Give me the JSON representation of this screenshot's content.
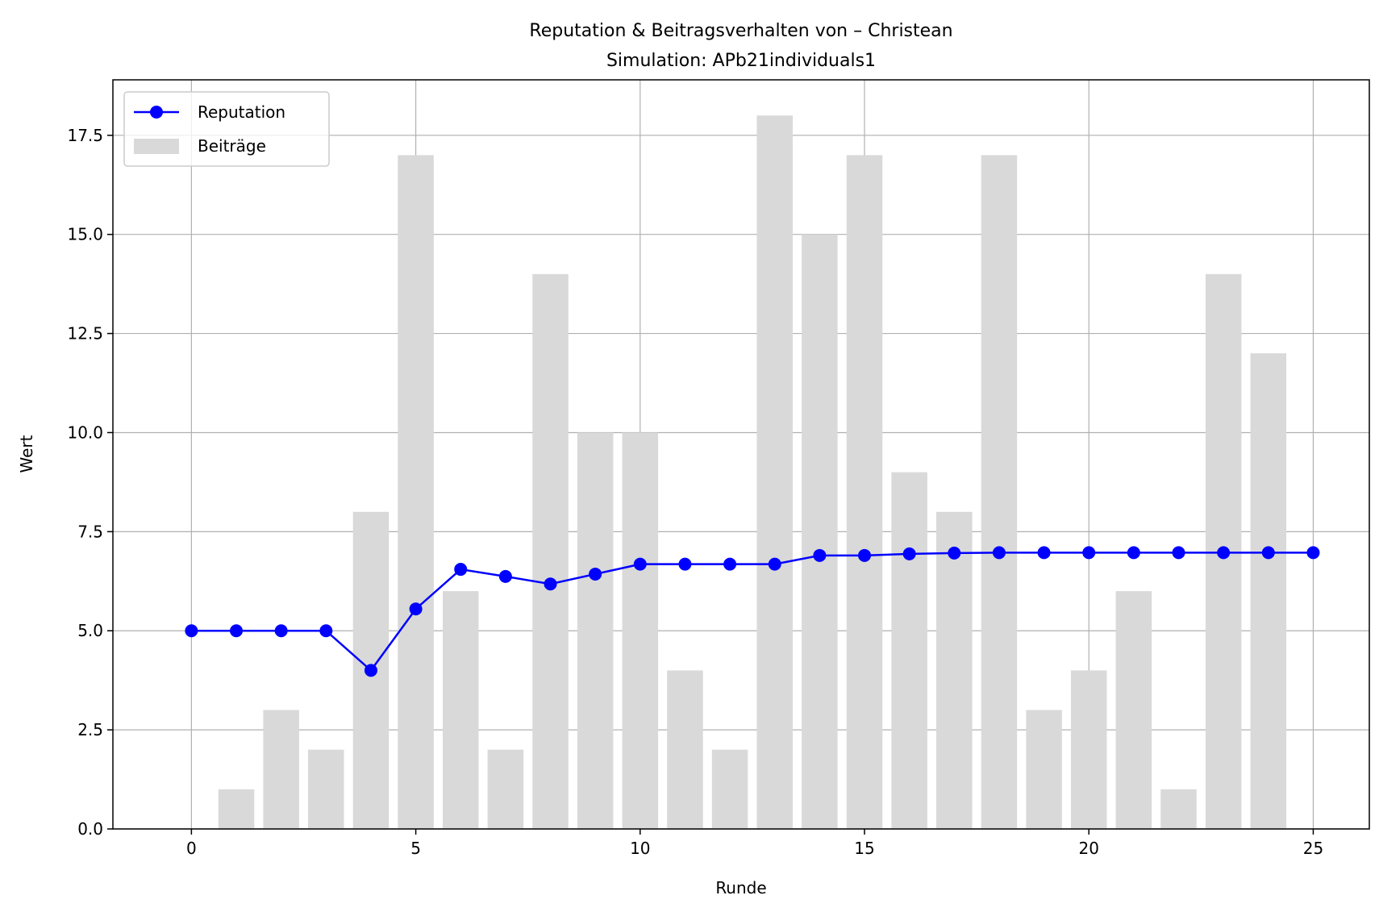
{
  "chart_data": {
    "type": "bar+line",
    "title": "Reputation & Beitragsverhalten von – Christean",
    "subtitle": "Simulation: APb21individuals1",
    "xlabel": "Runde",
    "ylabel": "Wert",
    "xlim": [
      -1.75,
      26.25
    ],
    "ylim": [
      0,
      18.9
    ],
    "xticks": [
      0,
      5,
      10,
      15,
      20,
      25
    ],
    "xtick_labels": [
      "0",
      "5",
      "10",
      "15",
      "20",
      "25"
    ],
    "yticks": [
      0,
      2.5,
      5,
      7.5,
      10,
      12.5,
      15,
      17.5
    ],
    "ytick_labels": [
      "0.0",
      "2.5",
      "5.0",
      "7.5",
      "10.0",
      "12.5",
      "15.0",
      "17.5"
    ],
    "grid": true,
    "legend_position": "top-left",
    "series": [
      {
        "name": "Reputation",
        "type": "line",
        "color": "#0000ff",
        "x": [
          0,
          1,
          2,
          3,
          4,
          5,
          6,
          7,
          8,
          9,
          10,
          11,
          12,
          13,
          14,
          15,
          16,
          17,
          18,
          19,
          20,
          21,
          22,
          23,
          24,
          25
        ],
        "values": [
          5.0,
          5.0,
          5.0,
          5.0,
          4.0,
          5.55,
          6.55,
          6.37,
          6.18,
          6.43,
          6.68,
          6.68,
          6.68,
          6.68,
          6.9,
          6.9,
          6.94,
          6.96,
          6.97,
          6.97,
          6.97,
          6.97,
          6.97,
          6.97,
          6.97,
          6.97
        ]
      },
      {
        "name": "Beiträge",
        "type": "bar",
        "color": "#d9d9d9",
        "x": [
          0,
          1,
          2,
          3,
          4,
          5,
          6,
          7,
          8,
          9,
          10,
          11,
          12,
          13,
          14,
          15,
          16,
          17,
          18,
          19,
          20,
          21,
          22,
          23,
          24
        ],
        "values": [
          0,
          1,
          3,
          2,
          8,
          17,
          6,
          2,
          14,
          10,
          10,
          4,
          2,
          18,
          15,
          17,
          9,
          8,
          17,
          3,
          4,
          6,
          1,
          14,
          12
        ]
      }
    ]
  }
}
